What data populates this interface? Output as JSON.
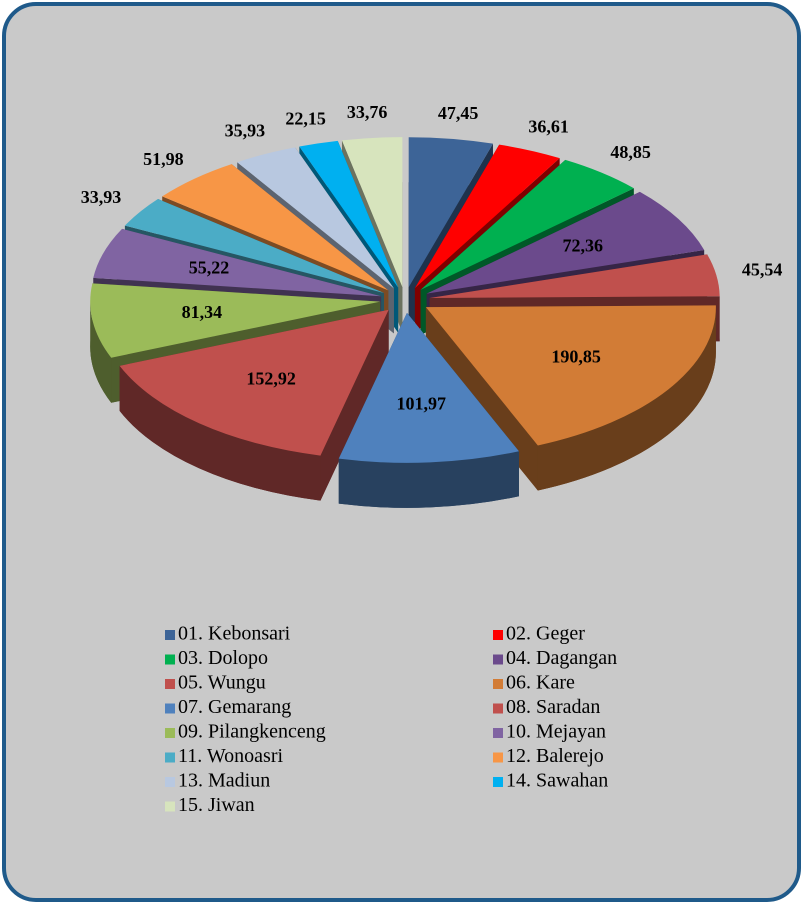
{
  "chart_data": {
    "type": "pie3d",
    "categories": [
      "01. Kebonsari",
      "02. Geger",
      "03. Dolopo",
      "04. Dagangan",
      "05. Wungu",
      "06. Kare",
      "07. Gemarang",
      "08. Saradan",
      "09. Pilangkenceng",
      "10. Mejayan",
      "11. Wonoasri",
      "12. Balerejo",
      "13. Madiun",
      "14. Sawahan",
      "15. Jiwan"
    ],
    "values": [
      47.45,
      36.61,
      48.85,
      72.36,
      45.54,
      190.85,
      101.97,
      152.92,
      81.34,
      55.22,
      33.93,
      51.98,
      35.93,
      22.15,
      33.76
    ],
    "value_labels": [
      "47,45",
      "36,61",
      "48,85",
      "72,36",
      "45,54",
      "190,85",
      "101,97",
      "152,92",
      "81,34",
      "55,22",
      "33,93",
      "51,98",
      "35,93",
      "22,15",
      "33,76"
    ],
    "colors": [
      "#3d6497",
      "#ff0000",
      "#00b050",
      "#6b4a8c",
      "#c0504d",
      "#d27c36",
      "#4f81bd",
      "#c0504d",
      "#9bbb59",
      "#8064a2",
      "#4bacc6",
      "#f79646",
      "#b8c8e0",
      "#00b0f0",
      "#d7e4bd"
    ],
    "legend": "bottom"
  }
}
